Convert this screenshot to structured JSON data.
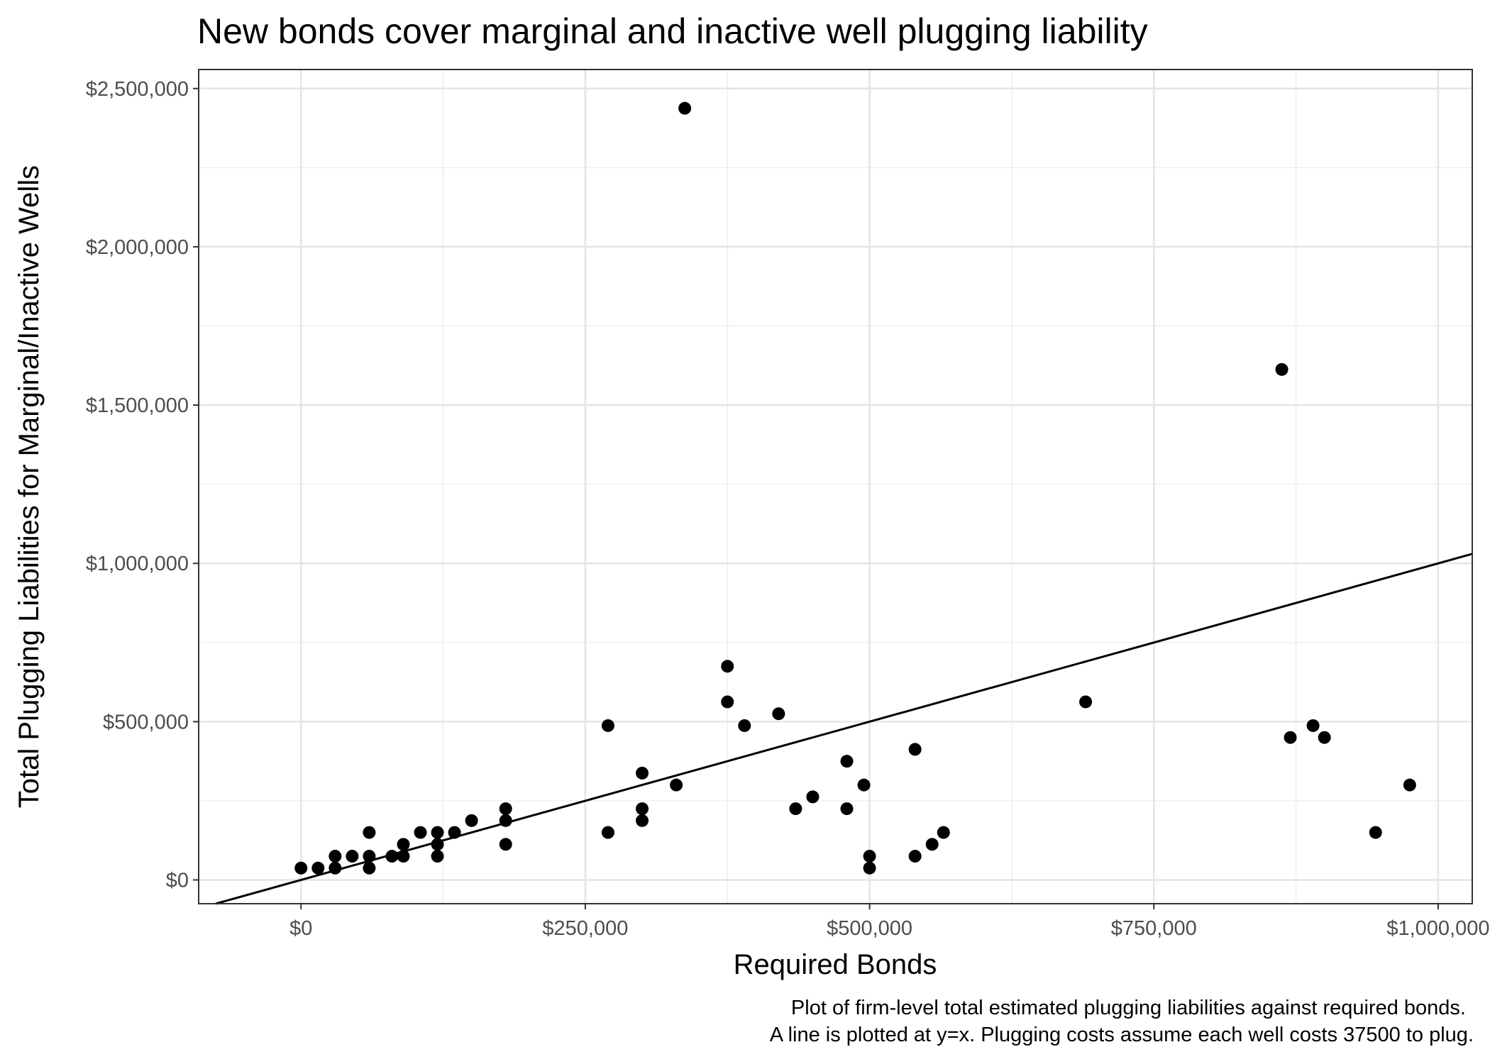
{
  "chart_data": {
    "type": "scatter",
    "title": "New bonds cover marginal and inactive well plugging liability",
    "xlabel": "Required Bonds",
    "ylabel": "Total Plugging Liabilities for Marginal/Inactive Wells",
    "caption": [
      "Plot of firm-level total estimated plugging liabilities against required bonds.",
      "A line is plotted at y=x. Plugging costs assume each well costs 37500 to plug."
    ],
    "xlim": [
      -90000,
      1030000
    ],
    "ylim": [
      -75000,
      2560000
    ],
    "x_ticks": [
      0,
      250000,
      500000,
      750000,
      1000000
    ],
    "x_tick_labels": [
      "$0",
      "$250,000",
      "$500,000",
      "$750,000",
      "$1,000,000"
    ],
    "y_ticks": [
      0,
      500000,
      1000000,
      1500000,
      2000000,
      2500000
    ],
    "y_tick_labels": [
      "$0",
      "$500,000",
      "$1,000,000",
      "$1,500,000",
      "$2,000,000",
      "$2,500,000"
    ],
    "grid": true,
    "reference_line": "y=x",
    "points": [
      {
        "x": 0,
        "y": 37500
      },
      {
        "x": 15000,
        "y": 37500
      },
      {
        "x": 30000,
        "y": 37500
      },
      {
        "x": 30000,
        "y": 75000
      },
      {
        "x": 45000,
        "y": 75000
      },
      {
        "x": 60000,
        "y": 37500
      },
      {
        "x": 60000,
        "y": 75000
      },
      {
        "x": 60000,
        "y": 150000
      },
      {
        "x": 80000,
        "y": 75000
      },
      {
        "x": 90000,
        "y": 75000
      },
      {
        "x": 90000,
        "y": 112500
      },
      {
        "x": 105000,
        "y": 150000
      },
      {
        "x": 120000,
        "y": 75000
      },
      {
        "x": 120000,
        "y": 112500
      },
      {
        "x": 120000,
        "y": 150000
      },
      {
        "x": 135000,
        "y": 150000
      },
      {
        "x": 150000,
        "y": 187500
      },
      {
        "x": 180000,
        "y": 112500
      },
      {
        "x": 180000,
        "y": 187500
      },
      {
        "x": 180000,
        "y": 225000
      },
      {
        "x": 270000,
        "y": 150000
      },
      {
        "x": 270000,
        "y": 487500
      },
      {
        "x": 300000,
        "y": 187500
      },
      {
        "x": 300000,
        "y": 225000
      },
      {
        "x": 300000,
        "y": 337500
      },
      {
        "x": 330000,
        "y": 300000
      },
      {
        "x": 337500,
        "y": 2437500
      },
      {
        "x": 375000,
        "y": 562500
      },
      {
        "x": 375000,
        "y": 675000
      },
      {
        "x": 390000,
        "y": 487500
      },
      {
        "x": 420000,
        "y": 525000
      },
      {
        "x": 435000,
        "y": 225000
      },
      {
        "x": 450000,
        "y": 262500
      },
      {
        "x": 480000,
        "y": 225000
      },
      {
        "x": 480000,
        "y": 375000
      },
      {
        "x": 495000,
        "y": 300000
      },
      {
        "x": 500000,
        "y": 37500
      },
      {
        "x": 500000,
        "y": 75000
      },
      {
        "x": 540000,
        "y": 75000
      },
      {
        "x": 540000,
        "y": 412500
      },
      {
        "x": 555000,
        "y": 112500
      },
      {
        "x": 565000,
        "y": 150000
      },
      {
        "x": 690000,
        "y": 562500
      },
      {
        "x": 862500,
        "y": 1612500
      },
      {
        "x": 870000,
        "y": 450000
      },
      {
        "x": 890000,
        "y": 487500
      },
      {
        "x": 900000,
        "y": 450000
      },
      {
        "x": 945000,
        "y": 150000
      },
      {
        "x": 975000,
        "y": 300000
      }
    ]
  }
}
